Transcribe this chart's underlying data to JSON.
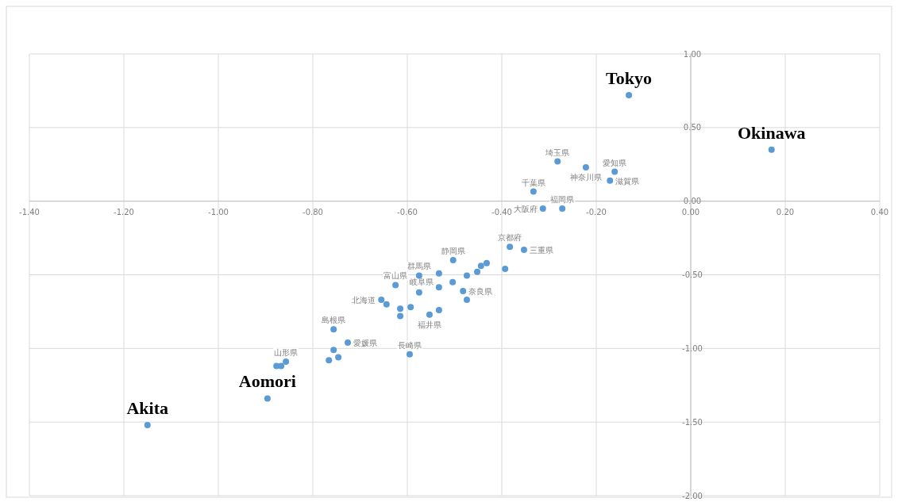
{
  "chart_data": {
    "type": "scatter",
    "color": "#5b9bd5",
    "marker": "circle",
    "grid": true,
    "xlim": [
      -1.4,
      0.4
    ],
    "ylim": [
      -2.0,
      1.0
    ],
    "xticks": [
      {
        "value": -1.4,
        "label": "-1.40"
      },
      {
        "value": -1.2,
        "label": "-1.20"
      },
      {
        "value": -1.0,
        "label": "-1.00"
      },
      {
        "value": -0.8,
        "label": "-0.80"
      },
      {
        "value": -0.6,
        "label": "-0.60"
      },
      {
        "value": -0.4,
        "label": "-0.40"
      },
      {
        "value": -0.2,
        "label": "-0.20"
      },
      {
        "value": 0,
        "label": "0.00"
      },
      {
        "value": 0.2,
        "label": "0.20"
      },
      {
        "value": 0.4,
        "label": "0.40"
      }
    ],
    "yticks": [
      {
        "value": 1.0,
        "label": "1.00"
      },
      {
        "value": 0.5,
        "label": "0.50"
      },
      {
        "value": 0,
        "label": "0.00"
      },
      {
        "value": -0.5,
        "label": "-0.50"
      },
      {
        "value": -1.0,
        "label": "-1.00"
      },
      {
        "value": -1.5,
        "label": "-1.50"
      },
      {
        "value": -2.0,
        "label": "-2.00"
      }
    ],
    "x": [
      -0.131,
      0.171,
      -1.15,
      -0.896,
      -0.282,
      -0.222,
      -0.161,
      -0.171,
      -0.333,
      -0.313,
      -0.272,
      -0.383,
      -0.353,
      -0.393,
      -0.444,
      -0.432,
      -0.452,
      -0.474,
      -0.503,
      -0.504,
      -0.482,
      -0.474,
      -0.533,
      -0.533,
      -0.533,
      -0.553,
      -0.575,
      -0.575,
      -0.593,
      -0.615,
      -0.615,
      -0.625,
      -0.655,
      -0.644,
      -0.756,
      -0.726,
      -0.756,
      -0.746,
      -0.766,
      -0.595,
      -0.857,
      -0.877,
      -0.867
    ],
    "values": [
      0.72,
      0.35,
      -1.52,
      -1.34,
      0.27,
      0.23,
      0.2,
      0.14,
      0.065,
      -0.05,
      -0.05,
      -0.31,
      -0.33,
      -0.46,
      -0.44,
      -0.42,
      -0.48,
      -0.505,
      -0.4,
      -0.55,
      -0.61,
      -0.67,
      -0.49,
      -0.585,
      -0.74,
      -0.77,
      -0.505,
      -0.62,
      -0.72,
      -0.73,
      -0.78,
      -0.57,
      -0.67,
      -0.7,
      -0.87,
      -0.96,
      -1.01,
      -1.06,
      -1.08,
      -1.04,
      -1.09,
      -1.12,
      -1.12
    ],
    "annotations": [
      {
        "text": "Tokyo",
        "x": -0.131,
        "y": 0.72
      },
      {
        "text": "Okinawa",
        "x": 0.171,
        "y": 0.35
      },
      {
        "text": "Akita",
        "x": -1.15,
        "y": -1.52
      },
      {
        "text": "Aomori",
        "x": -0.896,
        "y": -1.34
      },
      {
        "text": "埼玉県",
        "x": -0.282,
        "y": 0.27
      },
      {
        "text": "神奈川県",
        "x": -0.222,
        "y": 0.23
      },
      {
        "text": "愛知県",
        "x": -0.161,
        "y": 0.2
      },
      {
        "text": "滋賀県",
        "x": -0.171,
        "y": 0.14
      },
      {
        "text": "千葉県",
        "x": -0.333,
        "y": 0.065
      },
      {
        "text": "大阪府",
        "x": -0.313,
        "y": -0.05
      },
      {
        "text": "福岡県",
        "x": -0.272,
        "y": -0.05
      },
      {
        "text": "京都府",
        "x": -0.383,
        "y": -0.31
      },
      {
        "text": "三重県",
        "x": -0.353,
        "y": -0.33
      },
      {
        "text": "静岡県",
        "x": -0.503,
        "y": -0.4
      },
      {
        "text": "群馬県",
        "x": -0.575,
        "y": -0.505
      },
      {
        "text": "岐阜県",
        "x": -0.533,
        "y": -0.49
      },
      {
        "text": "富山県",
        "x": -0.625,
        "y": -0.57
      },
      {
        "text": "北海道",
        "x": -0.655,
        "y": -0.67
      },
      {
        "text": "奈良県",
        "x": -0.482,
        "y": -0.61
      },
      {
        "text": "福井県",
        "x": -0.553,
        "y": -0.77
      },
      {
        "text": "島根県",
        "x": -0.756,
        "y": -0.87
      },
      {
        "text": "愛媛県",
        "x": -0.726,
        "y": -0.96
      },
      {
        "text": "長崎県",
        "x": -0.595,
        "y": -1.04
      },
      {
        "text": "山形県",
        "x": -0.857,
        "y": -1.09
      }
    ]
  }
}
